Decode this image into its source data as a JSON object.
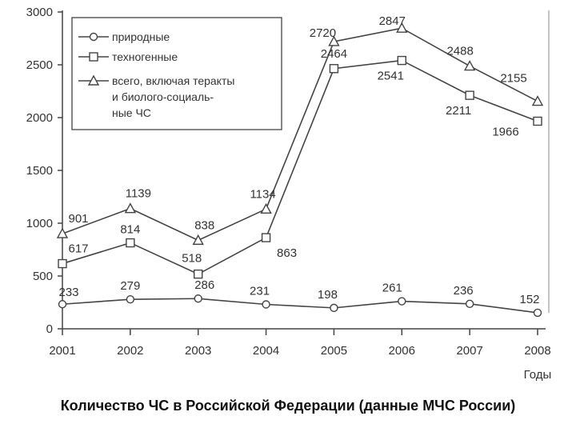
{
  "chart_data": {
    "type": "line",
    "x": [
      2001,
      2002,
      2003,
      2004,
      2005,
      2006,
      2007,
      2008
    ],
    "xtick_labels": [
      "2001",
      "2002",
      "2003",
      "2004",
      "2005",
      "2006",
      "2007",
      "2008"
    ],
    "xlabel": "Годы",
    "yticks": [
      0,
      500,
      1000,
      1500,
      2000,
      2500,
      3000
    ],
    "ytick_labels": [
      "0",
      "500",
      "1000",
      "1500",
      "2000",
      "2500",
      "3000"
    ],
    "ylim": [
      0,
      3000
    ],
    "grid": false,
    "legend_position": "top-left",
    "series": [
      {
        "name": "природные",
        "marker": "circle",
        "values": [
          233,
          279,
          286,
          231,
          198,
          261,
          236,
          152
        ],
        "value_labels": [
          "233",
          "279",
          "286",
          "231",
          "198",
          "261",
          "236",
          "152"
        ]
      },
      {
        "name": "техногенные",
        "marker": "square",
        "values": [
          617,
          814,
          518,
          863,
          2464,
          2541,
          2211,
          1966
        ],
        "value_labels": [
          "617",
          "814",
          "518",
          "863",
          "2464",
          "2541",
          "2211",
          "1966"
        ]
      },
      {
        "name": "всего, включая теракты и биолого-социальные ЧС",
        "legend_lines": [
          "всего, включая теракты",
          "и биолого-социаль-",
          "ные ЧС"
        ],
        "marker": "triangle",
        "values": [
          901,
          1139,
          838,
          1134,
          2720,
          2847,
          2488,
          2155
        ],
        "value_labels": [
          "901",
          "1139",
          "838",
          "1134",
          "2720",
          "2847",
          "2488",
          "2155"
        ]
      }
    ]
  },
  "caption": "Количество ЧС в Российской Федерации (данные МЧС России)"
}
